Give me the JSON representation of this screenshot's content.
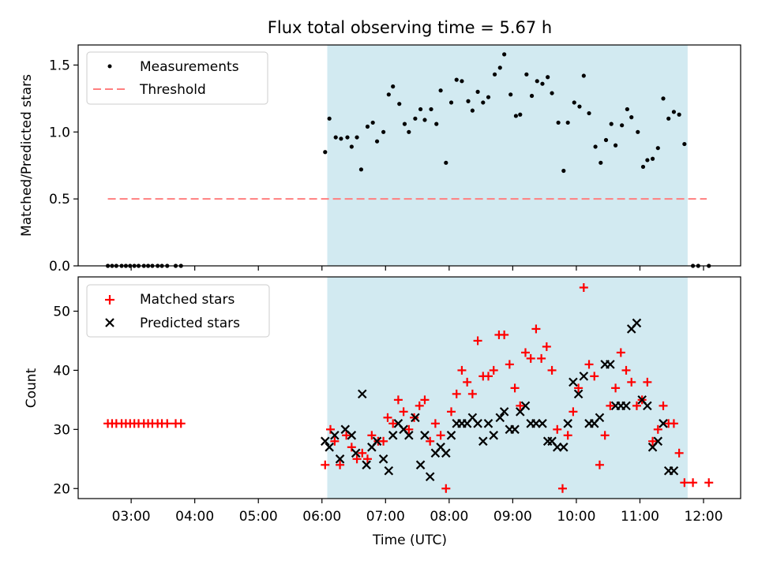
{
  "title": "Flux total observing time = 5.67 h",
  "colors": {
    "shade": "#add8e6",
    "measurement": "#000000",
    "threshold": "#ff7f7f",
    "matched": "#ff0000",
    "predicted": "#000000"
  },
  "chart_data": [
    {
      "type": "scatter",
      "panel": "top",
      "xlabel": "",
      "ylabel": "Matched/Predicted stars",
      "xlim": [
        "02:10",
        "12:35"
      ],
      "ylim": [
        0,
        1.65
      ],
      "yticks": [
        "0.0",
        "0.5",
        "1.0",
        "1.5"
      ],
      "shaded_region": [
        "06:05",
        "11:45"
      ],
      "legend": {
        "position": "top-left",
        "entries": [
          "Measurements",
          "Threshold"
        ]
      },
      "threshold": {
        "name": "Threshold",
        "y": 0.5,
        "x_range": [
          "02:38",
          "12:03"
        ],
        "style": "dashed"
      },
      "series": [
        {
          "name": "Measurements",
          "marker": "dot",
          "points": [
            [
              "02:38",
              0
            ],
            [
              "02:42",
              0
            ],
            [
              "02:46",
              0
            ],
            [
              "02:51",
              0
            ],
            [
              "02:55",
              0
            ],
            [
              "02:59",
              0
            ],
            [
              "03:03",
              0
            ],
            [
              "03:07",
              0
            ],
            [
              "03:12",
              0
            ],
            [
              "03:16",
              0
            ],
            [
              "03:20",
              0
            ],
            [
              "03:25",
              0
            ],
            [
              "03:29",
              0
            ],
            [
              "03:34",
              0
            ],
            [
              "03:42",
              0
            ],
            [
              "03:47",
              0
            ],
            [
              "06:03",
              0.85
            ],
            [
              "06:07",
              1.1
            ],
            [
              "06:13",
              0.96
            ],
            [
              "06:18",
              0.95
            ],
            [
              "06:24",
              0.96
            ],
            [
              "06:28",
              0.89
            ],
            [
              "06:33",
              0.96
            ],
            [
              "06:37",
              0.72
            ],
            [
              "06:43",
              1.04
            ],
            [
              "06:48",
              1.07
            ],
            [
              "06:52",
              0.93
            ],
            [
              "06:58",
              1.0
            ],
            [
              "07:03",
              1.28
            ],
            [
              "07:07",
              1.34
            ],
            [
              "07:13",
              1.21
            ],
            [
              "07:18",
              1.06
            ],
            [
              "07:22",
              1.0
            ],
            [
              "07:28",
              1.1
            ],
            [
              "07:33",
              1.17
            ],
            [
              "07:37",
              1.09
            ],
            [
              "07:43",
              1.17
            ],
            [
              "07:48",
              1.06
            ],
            [
              "07:52",
              1.31
            ],
            [
              "07:57",
              0.77
            ],
            [
              "08:02",
              1.22
            ],
            [
              "08:07",
              1.39
            ],
            [
              "08:12",
              1.38
            ],
            [
              "08:18",
              1.23
            ],
            [
              "08:22",
              1.16
            ],
            [
              "08:27",
              1.3
            ],
            [
              "08:32",
              1.22
            ],
            [
              "08:37",
              1.26
            ],
            [
              "08:43",
              1.43
            ],
            [
              "08:48",
              1.48
            ],
            [
              "08:52",
              1.58
            ],
            [
              "08:58",
              1.28
            ],
            [
              "09:03",
              1.12
            ],
            [
              "09:07",
              1.13
            ],
            [
              "09:13",
              1.43
            ],
            [
              "09:18",
              1.27
            ],
            [
              "09:23",
              1.38
            ],
            [
              "09:28",
              1.36
            ],
            [
              "09:33",
              1.41
            ],
            [
              "09:37",
              1.29
            ],
            [
              "09:43",
              1.07
            ],
            [
              "09:48",
              0.71
            ],
            [
              "09:52",
              1.07
            ],
            [
              "09:58",
              1.22
            ],
            [
              "10:03",
              1.19
            ],
            [
              "10:07",
              1.42
            ],
            [
              "10:12",
              1.14
            ],
            [
              "10:18",
              0.89
            ],
            [
              "10:23",
              0.77
            ],
            [
              "10:28",
              0.94
            ],
            [
              "10:33",
              1.06
            ],
            [
              "10:37",
              0.9
            ],
            [
              "10:43",
              1.05
            ],
            [
              "10:48",
              1.17
            ],
            [
              "10:52",
              1.11
            ],
            [
              "10:58",
              1.0
            ],
            [
              "11:03",
              0.74
            ],
            [
              "11:07",
              0.79
            ],
            [
              "11:12",
              0.8
            ],
            [
              "11:17",
              0.88
            ],
            [
              "11:22",
              1.25
            ],
            [
              "11:27",
              1.1
            ],
            [
              "11:32",
              1.15
            ],
            [
              "11:37",
              1.13
            ],
            [
              "11:42",
              0.91
            ],
            [
              "11:50",
              0
            ],
            [
              "11:55",
              0
            ],
            [
              "12:05",
              0
            ]
          ]
        }
      ]
    },
    {
      "type": "scatter",
      "panel": "bottom",
      "xlabel": "Time (UTC)",
      "ylabel": "Count",
      "xlim": [
        "02:10",
        "12:35"
      ],
      "ylim": [
        18.3,
        55.8
      ],
      "xticks": [
        "03:00",
        "04:00",
        "05:00",
        "06:00",
        "07:00",
        "08:00",
        "09:00",
        "10:00",
        "11:00",
        "12:00"
      ],
      "yticks": [
        "20",
        "30",
        "40",
        "50"
      ],
      "shaded_region": [
        "06:05",
        "11:45"
      ],
      "legend": {
        "position": "top-left",
        "entries": [
          "Matched stars",
          "Predicted stars"
        ]
      },
      "series": [
        {
          "name": "Matched stars",
          "marker": "plus",
          "points": [
            [
              "02:38",
              31
            ],
            [
              "02:42",
              31
            ],
            [
              "02:46",
              31
            ],
            [
              "02:51",
              31
            ],
            [
              "02:55",
              31
            ],
            [
              "02:59",
              31
            ],
            [
              "03:03",
              31
            ],
            [
              "03:07",
              31
            ],
            [
              "03:12",
              31
            ],
            [
              "03:16",
              31
            ],
            [
              "03:20",
              31
            ],
            [
              "03:25",
              31
            ],
            [
              "03:29",
              31
            ],
            [
              "03:34",
              31
            ],
            [
              "03:42",
              31
            ],
            [
              "03:47",
              31
            ],
            [
              "06:03",
              24
            ],
            [
              "06:08",
              30
            ],
            [
              "06:12",
              28
            ],
            [
              "06:17",
              24
            ],
            [
              "06:23",
              29
            ],
            [
              "06:28",
              27
            ],
            [
              "06:33",
              25
            ],
            [
              "06:38",
              26
            ],
            [
              "06:43",
              25
            ],
            [
              "06:47",
              29
            ],
            [
              "06:53",
              28
            ],
            [
              "06:58",
              28
            ],
            [
              "07:02",
              32
            ],
            [
              "07:07",
              31
            ],
            [
              "07:12",
              35
            ],
            [
              "07:17",
              33
            ],
            [
              "07:22",
              30
            ],
            [
              "07:27",
              32
            ],
            [
              "07:32",
              34
            ],
            [
              "07:37",
              35
            ],
            [
              "07:42",
              28
            ],
            [
              "07:47",
              31
            ],
            [
              "07:52",
              29
            ],
            [
              "07:57",
              20
            ],
            [
              "08:02",
              33
            ],
            [
              "08:07",
              36
            ],
            [
              "08:12",
              40
            ],
            [
              "08:17",
              38
            ],
            [
              "08:22",
              36
            ],
            [
              "08:27",
              45
            ],
            [
              "08:32",
              39
            ],
            [
              "08:37",
              39
            ],
            [
              "08:42",
              40
            ],
            [
              "08:47",
              46
            ],
            [
              "08:52",
              46
            ],
            [
              "08:57",
              41
            ],
            [
              "09:02",
              37
            ],
            [
              "09:07",
              34
            ],
            [
              "09:12",
              43
            ],
            [
              "09:17",
              42
            ],
            [
              "09:22",
              47
            ],
            [
              "09:27",
              42
            ],
            [
              "09:32",
              44
            ],
            [
              "09:37",
              40
            ],
            [
              "09:42",
              30
            ],
            [
              "09:47",
              20
            ],
            [
              "09:52",
              29
            ],
            [
              "09:57",
              33
            ],
            [
              "10:02",
              37
            ],
            [
              "10:07",
              54
            ],
            [
              "10:12",
              41
            ],
            [
              "10:17",
              39
            ],
            [
              "10:22",
              24
            ],
            [
              "10:27",
              29
            ],
            [
              "10:32",
              34
            ],
            [
              "10:37",
              37
            ],
            [
              "10:42",
              43
            ],
            [
              "10:47",
              40
            ],
            [
              "10:52",
              38
            ],
            [
              "10:57",
              34
            ],
            [
              "11:02",
              35
            ],
            [
              "11:07",
              38
            ],
            [
              "11:12",
              28
            ],
            [
              "11:17",
              30
            ],
            [
              "11:22",
              34
            ],
            [
              "11:27",
              31
            ],
            [
              "11:32",
              31
            ],
            [
              "11:37",
              26
            ],
            [
              "11:42",
              21
            ],
            [
              "11:50",
              21
            ],
            [
              "12:05",
              21
            ]
          ]
        },
        {
          "name": "Predicted stars",
          "marker": "x",
          "points": [
            [
              "06:03",
              28
            ],
            [
              "06:07",
              27
            ],
            [
              "06:12",
              29
            ],
            [
              "06:17",
              25
            ],
            [
              "06:22",
              30
            ],
            [
              "06:28",
              29
            ],
            [
              "06:32",
              26
            ],
            [
              "06:38",
              36
            ],
            [
              "06:42",
              24
            ],
            [
              "06:47",
              27
            ],
            [
              "06:52",
              28
            ],
            [
              "06:58",
              25
            ],
            [
              "07:03",
              23
            ],
            [
              "07:07",
              29
            ],
            [
              "07:12",
              31
            ],
            [
              "07:17",
              30
            ],
            [
              "07:22",
              29
            ],
            [
              "07:28",
              32
            ],
            [
              "07:33",
              24
            ],
            [
              "07:37",
              29
            ],
            [
              "07:42",
              22
            ],
            [
              "07:47",
              26
            ],
            [
              "07:52",
              27
            ],
            [
              "07:57",
              26
            ],
            [
              "08:02",
              29
            ],
            [
              "08:07",
              31
            ],
            [
              "08:12",
              31
            ],
            [
              "08:17",
              31
            ],
            [
              "08:22",
              32
            ],
            [
              "08:27",
              31
            ],
            [
              "08:32",
              28
            ],
            [
              "08:37",
              31
            ],
            [
              "08:42",
              29
            ],
            [
              "08:48",
              32
            ],
            [
              "08:52",
              33
            ],
            [
              "08:57",
              30
            ],
            [
              "09:02",
              30
            ],
            [
              "09:07",
              33
            ],
            [
              "09:12",
              34
            ],
            [
              "09:17",
              31
            ],
            [
              "09:22",
              31
            ],
            [
              "09:28",
              31
            ],
            [
              "09:33",
              28
            ],
            [
              "09:37",
              28
            ],
            [
              "09:42",
              27
            ],
            [
              "09:48",
              27
            ],
            [
              "09:52",
              31
            ],
            [
              "09:57",
              38
            ],
            [
              "10:02",
              36
            ],
            [
              "10:07",
              39
            ],
            [
              "10:12",
              31
            ],
            [
              "10:17",
              31
            ],
            [
              "10:22",
              32
            ],
            [
              "10:27",
              41
            ],
            [
              "10:32",
              41
            ],
            [
              "10:37",
              34
            ],
            [
              "10:42",
              34
            ],
            [
              "10:47",
              34
            ],
            [
              "10:52",
              47
            ],
            [
              "10:57",
              48
            ],
            [
              "11:02",
              35
            ],
            [
              "11:07",
              34
            ],
            [
              "11:12",
              27
            ],
            [
              "11:17",
              28
            ],
            [
              "11:22",
              31
            ],
            [
              "11:27",
              23
            ],
            [
              "11:32",
              23
            ]
          ]
        }
      ]
    }
  ]
}
